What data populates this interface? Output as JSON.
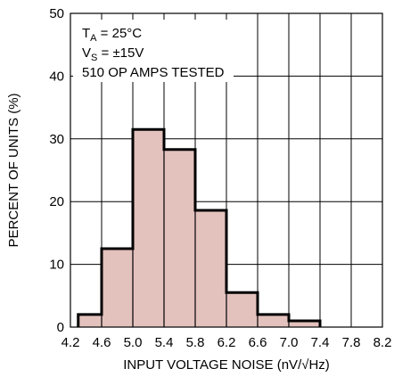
{
  "chart_data": {
    "type": "bar",
    "histogram": true,
    "xlabel": "INPUT VOLTAGE NOISE (nV/√Hz)",
    "ylabel": "PERCENT OF UNITS (%)",
    "xlim": [
      4.2,
      8.2
    ],
    "ylim": [
      0,
      50
    ],
    "x_ticks": [
      "4.2",
      "4.6",
      "5.0",
      "5.4",
      "5.8",
      "6.2",
      "6.6",
      "7.0",
      "7.4",
      "7.8",
      "8.2"
    ],
    "y_ticks": [
      "0",
      "10",
      "20",
      "30",
      "40",
      "50"
    ],
    "grid": true,
    "bins": [
      {
        "x0": 4.3,
        "x1": 4.6,
        "value": 2.0
      },
      {
        "x0": 4.6,
        "x1": 5.0,
        "value": 12.5
      },
      {
        "x0": 5.0,
        "x1": 5.4,
        "value": 31.5
      },
      {
        "x0": 5.4,
        "x1": 5.8,
        "value": 28.3
      },
      {
        "x0": 5.8,
        "x1": 6.2,
        "value": 18.6
      },
      {
        "x0": 6.2,
        "x1": 6.6,
        "value": 5.5
      },
      {
        "x0": 6.6,
        "x1": 7.0,
        "value": 2.0
      },
      {
        "x0": 7.0,
        "x1": 7.4,
        "value": 1.0
      }
    ],
    "annotations": {
      "line1": {
        "main": "T",
        "sub": "A",
        "rest": " = 25°C"
      },
      "line2": {
        "main": "V",
        "sub": "S",
        "rest": " = ±15V"
      },
      "line3": "510 OP AMPS TESTED"
    },
    "colors": {
      "fill": "#e3c1bd",
      "stroke": "#000000",
      "grid": "#000000"
    }
  }
}
